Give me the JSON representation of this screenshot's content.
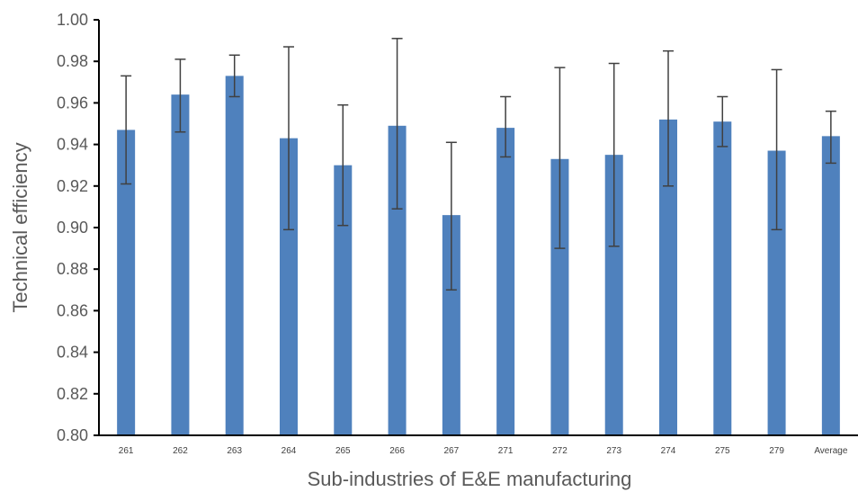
{
  "chart_data": {
    "type": "bar",
    "xlabel": "Sub-industries of E&E manufacturing",
    "ylabel": "Technical efficiency",
    "ylim": [
      0.8,
      1.0
    ],
    "yticks": [
      "0.80",
      "0.82",
      "0.84",
      "0.86",
      "0.88",
      "0.90",
      "0.92",
      "0.94",
      "0.96",
      "0.98",
      "1.00"
    ],
    "grid": false,
    "bar_color": "#4f81bd",
    "categories": [
      "261",
      "262",
      "263",
      "264",
      "265",
      "266",
      "267",
      "271",
      "272",
      "273",
      "274",
      "275",
      "279",
      "Average"
    ],
    "values": [
      0.947,
      0.964,
      0.973,
      0.943,
      0.93,
      0.949,
      0.906,
      0.948,
      0.933,
      0.935,
      0.952,
      0.951,
      0.937,
      0.944
    ],
    "error_low": [
      0.921,
      0.946,
      0.963,
      0.899,
      0.901,
      0.909,
      0.87,
      0.934,
      0.89,
      0.891,
      0.92,
      0.939,
      0.899,
      0.931
    ],
    "error_high": [
      0.973,
      0.981,
      0.983,
      0.987,
      0.959,
      0.991,
      0.941,
      0.963,
      0.977,
      0.979,
      0.985,
      0.963,
      0.976,
      0.956
    ]
  }
}
